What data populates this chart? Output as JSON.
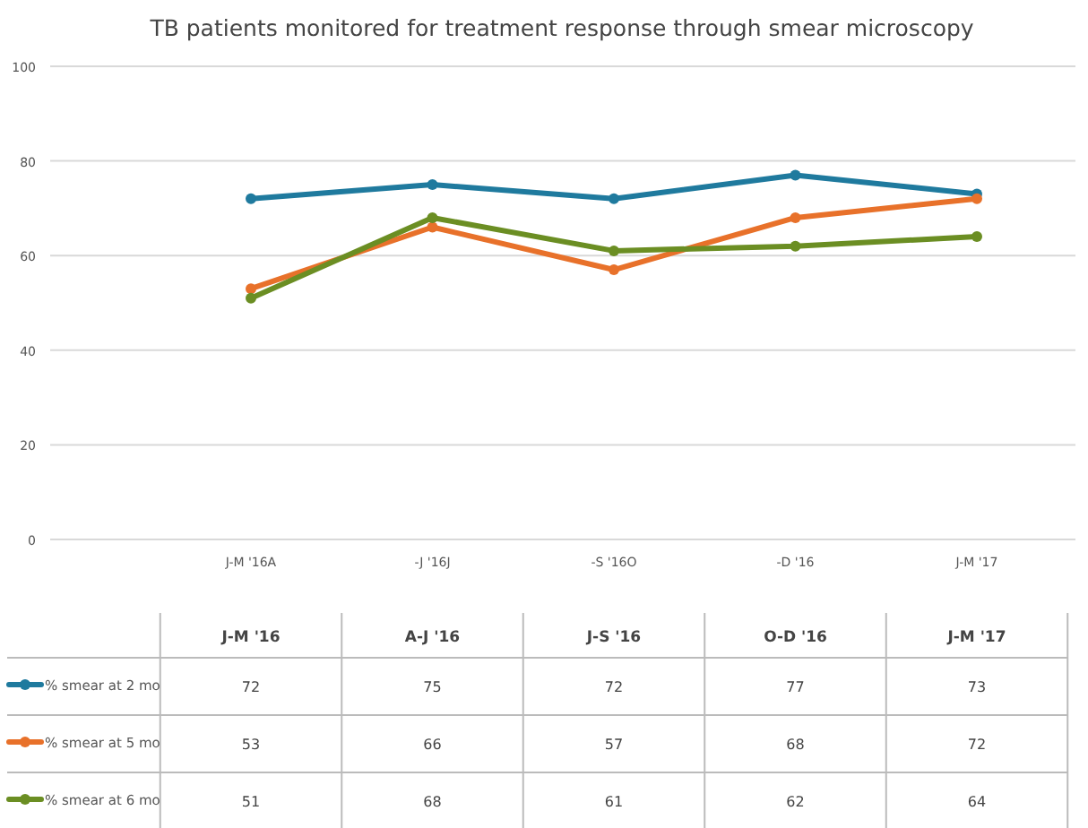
{
  "chart_data": {
    "type": "line",
    "title": "TB patients monitored for treatment response through smear microscopy",
    "categories": [
      "J-M '16A",
      "-J '16J",
      "-S '16O",
      "-D '16",
      "J-M '17"
    ],
    "series": [
      {
        "name": "% smear at 2 mo",
        "color": "#1f7a9e",
        "values": [
          72,
          75,
          72,
          77,
          73
        ]
      },
      {
        "name": "% smear at 5 mo",
        "color": "#e8712a",
        "values": [
          53,
          66,
          57,
          68,
          72
        ]
      },
      {
        "name": "% smear at 6 mo",
        "color": "#6b8e23",
        "values": [
          51,
          68,
          61,
          62,
          64
        ]
      }
    ],
    "annotations": [
      "J-M '16",
      "A-J '16",
      "J-S '16",
      "O-D '16",
      "J-M '17"
    ],
    "ylim": [
      0,
      100
    ],
    "yticks": [
      0,
      20,
      40,
      60,
      80,
      100
    ],
    "grid": "y",
    "marker": "circle",
    "line_style": "solid",
    "data_labels": true,
    "legend": "bottom"
  }
}
